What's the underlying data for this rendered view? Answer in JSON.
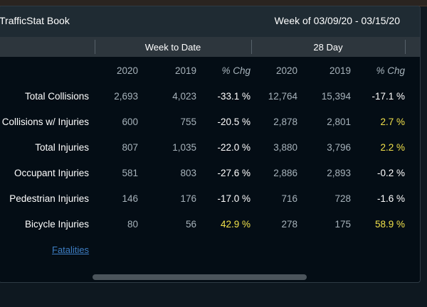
{
  "header": {
    "app_title": "TrafficStat Book",
    "week_range": "Week of 03/09/20 - 03/15/20"
  },
  "groups": {
    "week_to_date": "Week to Date",
    "twenty_eight_day": "28 Day"
  },
  "columns": {
    "wtd_2020": "2020",
    "wtd_2019": "2019",
    "wtd_chg": "% Chg",
    "d28_2020": "2020",
    "d28_2019": "2019",
    "d28_chg": "% Chg"
  },
  "rows": [
    {
      "label": "Total Collisions",
      "wtd_2020": "2,693",
      "wtd_2019": "4,023",
      "wtd_chg": "-33.1 %",
      "d28_2020": "12,764",
      "d28_2019": "15,394",
      "d28_chg": "-17.1 %"
    },
    {
      "label": "Collisions w/ Injuries",
      "wtd_2020": "600",
      "wtd_2019": "755",
      "wtd_chg": "-20.5 %",
      "d28_2020": "2,878",
      "d28_2019": "2,801",
      "d28_chg": "2.7 %"
    },
    {
      "label": "Total Injuries",
      "wtd_2020": "807",
      "wtd_2019": "1,035",
      "wtd_chg": "-22.0 %",
      "d28_2020": "3,880",
      "d28_2019": "3,796",
      "d28_chg": "2.2 %"
    },
    {
      "label": "Occupant Injuries",
      "wtd_2020": "581",
      "wtd_2019": "803",
      "wtd_chg": "-27.6 %",
      "d28_2020": "2,886",
      "d28_2019": "2,893",
      "d28_chg": "-0.2 %"
    },
    {
      "label": "Pedestrian Injuries",
      "wtd_2020": "146",
      "wtd_2019": "176",
      "wtd_chg": "-17.0 %",
      "d28_2020": "716",
      "d28_2019": "728",
      "d28_chg": "-1.6 %"
    },
    {
      "label": "Bicycle Injuries",
      "wtd_2020": "80",
      "wtd_2019": "56",
      "wtd_chg": "42.9 %",
      "d28_2020": "278",
      "d28_2019": "175",
      "d28_chg": "58.9 %"
    }
  ],
  "links": {
    "fatalities": "Fatalities"
  },
  "colors": {
    "increase_highlight": "#f1e14a",
    "decrease_text": "#ffffff",
    "link": "#3e7ec4"
  }
}
